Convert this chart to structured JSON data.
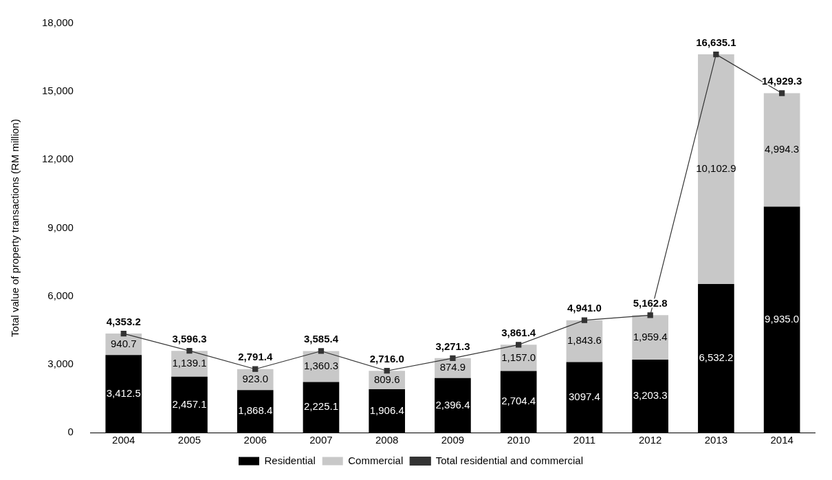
{
  "chart_data": {
    "type": "bar",
    "stacked": true,
    "ylabel": "Total value of property transactions (RM million)",
    "categories": [
      "2004",
      "2005",
      "2006",
      "2007",
      "2008",
      "2009",
      "2010",
      "2011",
      "2012",
      "2013",
      "2014"
    ],
    "series": [
      {
        "name": "Residential",
        "color": "#000000",
        "values": [
          3412.5,
          2457.1,
          1868.4,
          2225.1,
          1906.4,
          2396.4,
          2704.4,
          3097.4,
          3203.3,
          6532.2,
          9935.0
        ],
        "value_labels": [
          "3,412.5",
          "2,457.1",
          "1,868.4",
          "2,225.1",
          "1,906.4",
          "2,396.4",
          "2,704.4",
          "3097.4",
          "3,203.3",
          "6,532.2",
          "9,935.0"
        ]
      },
      {
        "name": "Commercial",
        "color": "#c8c8c8",
        "values": [
          940.7,
          1139.1,
          923.0,
          1360.3,
          809.6,
          874.9,
          1157.0,
          1843.6,
          1959.4,
          10102.9,
          4994.3
        ],
        "value_labels": [
          "940.7",
          "1,139.1",
          "923.0",
          "1,360.3",
          "809.6",
          "874.9",
          "1,157.0",
          "1,843.6",
          "1,959.4",
          "10,102.9",
          "4,994.3"
        ]
      },
      {
        "name": "Total residential and commercial",
        "type": "line",
        "color": "#333333",
        "marker": "square",
        "values": [
          4353.2,
          3596.3,
          2791.4,
          3585.4,
          2716.0,
          3271.3,
          3861.4,
          4941.0,
          5162.8,
          16635.1,
          14929.3
        ],
        "value_labels": [
          "4,353.2",
          "3,596.3",
          "2,791.4",
          "3,585.4",
          "2,716.0",
          "3,271.3",
          "3,861.4",
          "4,941.0",
          "5,162.8",
          "16,635.1",
          "14,929.3"
        ]
      }
    ],
    "ylim": [
      0,
      18000
    ],
    "yticks": [
      0,
      {
        "value": 3000,
        "label": "3,000"
      },
      {
        "value": 6000,
        "label": "6,000"
      },
      {
        "value": 9000,
        "label": "9,000"
      },
      {
        "value": 12000,
        "label": "12,000"
      },
      {
        "value": 15000,
        "label": "15,000"
      },
      {
        "value": 18000,
        "label": "18,000"
      }
    ],
    "grid": false,
    "legend": "bottom"
  }
}
